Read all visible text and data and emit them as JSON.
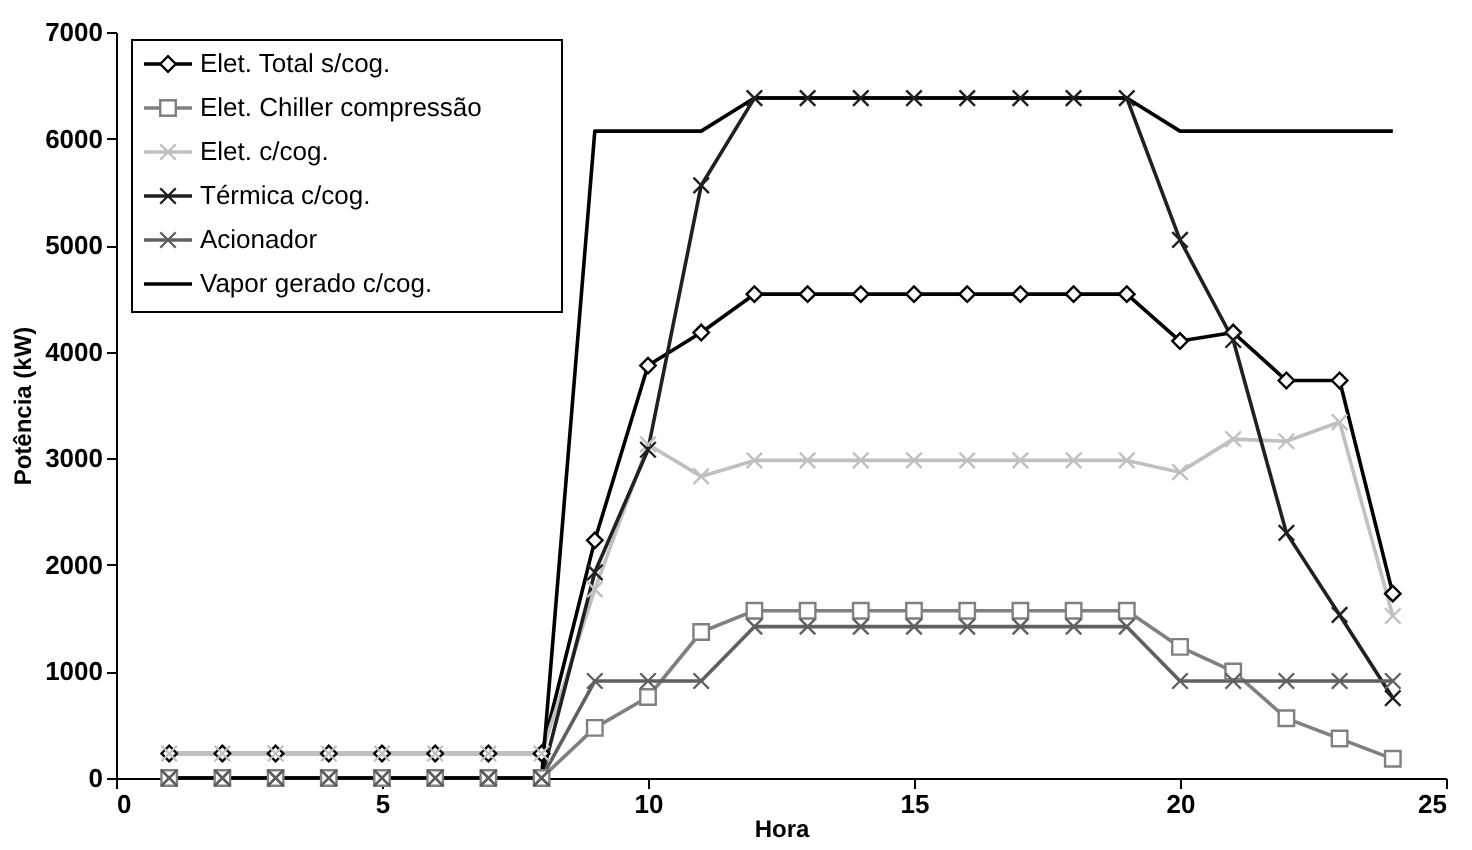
{
  "chart_data": {
    "type": "line",
    "xlabel": "Hora",
    "ylabel": "Potência (kW)",
    "x": [
      1,
      2,
      3,
      4,
      5,
      6,
      7,
      8,
      9,
      10,
      11,
      12,
      13,
      14,
      15,
      16,
      17,
      18,
      19,
      20,
      21,
      22,
      23,
      24
    ],
    "xlim": [
      0,
      25
    ],
    "xticks": [
      0,
      5,
      10,
      15,
      20,
      25
    ],
    "ylim": [
      0,
      7000
    ],
    "yticks": [
      0,
      1000,
      2000,
      3000,
      4000,
      5000,
      6000,
      7000
    ],
    "grid": false,
    "legend": "top left",
    "series": [
      {
        "name": "Elet. Total s/cog.",
        "color": "#000000",
        "marker": "diamond",
        "values": [
          230,
          230,
          230,
          230,
          230,
          230,
          230,
          230,
          2230,
          3870,
          4180,
          4540,
          4540,
          4540,
          4540,
          4540,
          4540,
          4540,
          4540,
          4100,
          4180,
          3730,
          3730,
          1730
        ]
      },
      {
        "name": "Elet. Chiller compressão",
        "color": "#808080",
        "marker": "square",
        "values": [
          0,
          0,
          0,
          0,
          0,
          0,
          0,
          0,
          470,
          760,
          1370,
          1570,
          1570,
          1570,
          1570,
          1570,
          1570,
          1570,
          1570,
          1230,
          1000,
          560,
          370,
          180
        ]
      },
      {
        "name": "Elet. c/cog.",
        "color": "#c0c0c0",
        "marker": "cross",
        "values": [
          230,
          230,
          230,
          230,
          230,
          230,
          230,
          230,
          1770,
          3130,
          2830,
          2980,
          2980,
          2980,
          2980,
          2980,
          2980,
          2980,
          2980,
          2870,
          3180,
          3160,
          3340,
          1520
        ]
      },
      {
        "name": "Térmica  c/cog.",
        "color": "#202020",
        "marker": "cross",
        "values": [
          0,
          0,
          0,
          0,
          0,
          0,
          0,
          0,
          1930,
          3080,
          5560,
          6380,
          6380,
          6380,
          6380,
          6380,
          6380,
          6380,
          6380,
          5050,
          4110,
          2300,
          1530,
          750
        ]
      },
      {
        "name": "Acionador",
        "color": "#606060",
        "marker": "cross",
        "values": [
          0,
          0,
          0,
          0,
          0,
          0,
          0,
          0,
          910,
          910,
          910,
          1420,
          1420,
          1420,
          1420,
          1420,
          1420,
          1420,
          1420,
          910,
          910,
          910,
          910,
          910
        ]
      },
      {
        "name": "Vapor gerado c/cog.",
        "color": "#000000",
        "marker": "none",
        "values": [
          0,
          0,
          0,
          0,
          0,
          0,
          0,
          0,
          6070,
          6070,
          6070,
          6380,
          6380,
          6380,
          6380,
          6380,
          6380,
          6380,
          6380,
          6070,
          6070,
          6070,
          6070,
          6070
        ]
      }
    ]
  }
}
